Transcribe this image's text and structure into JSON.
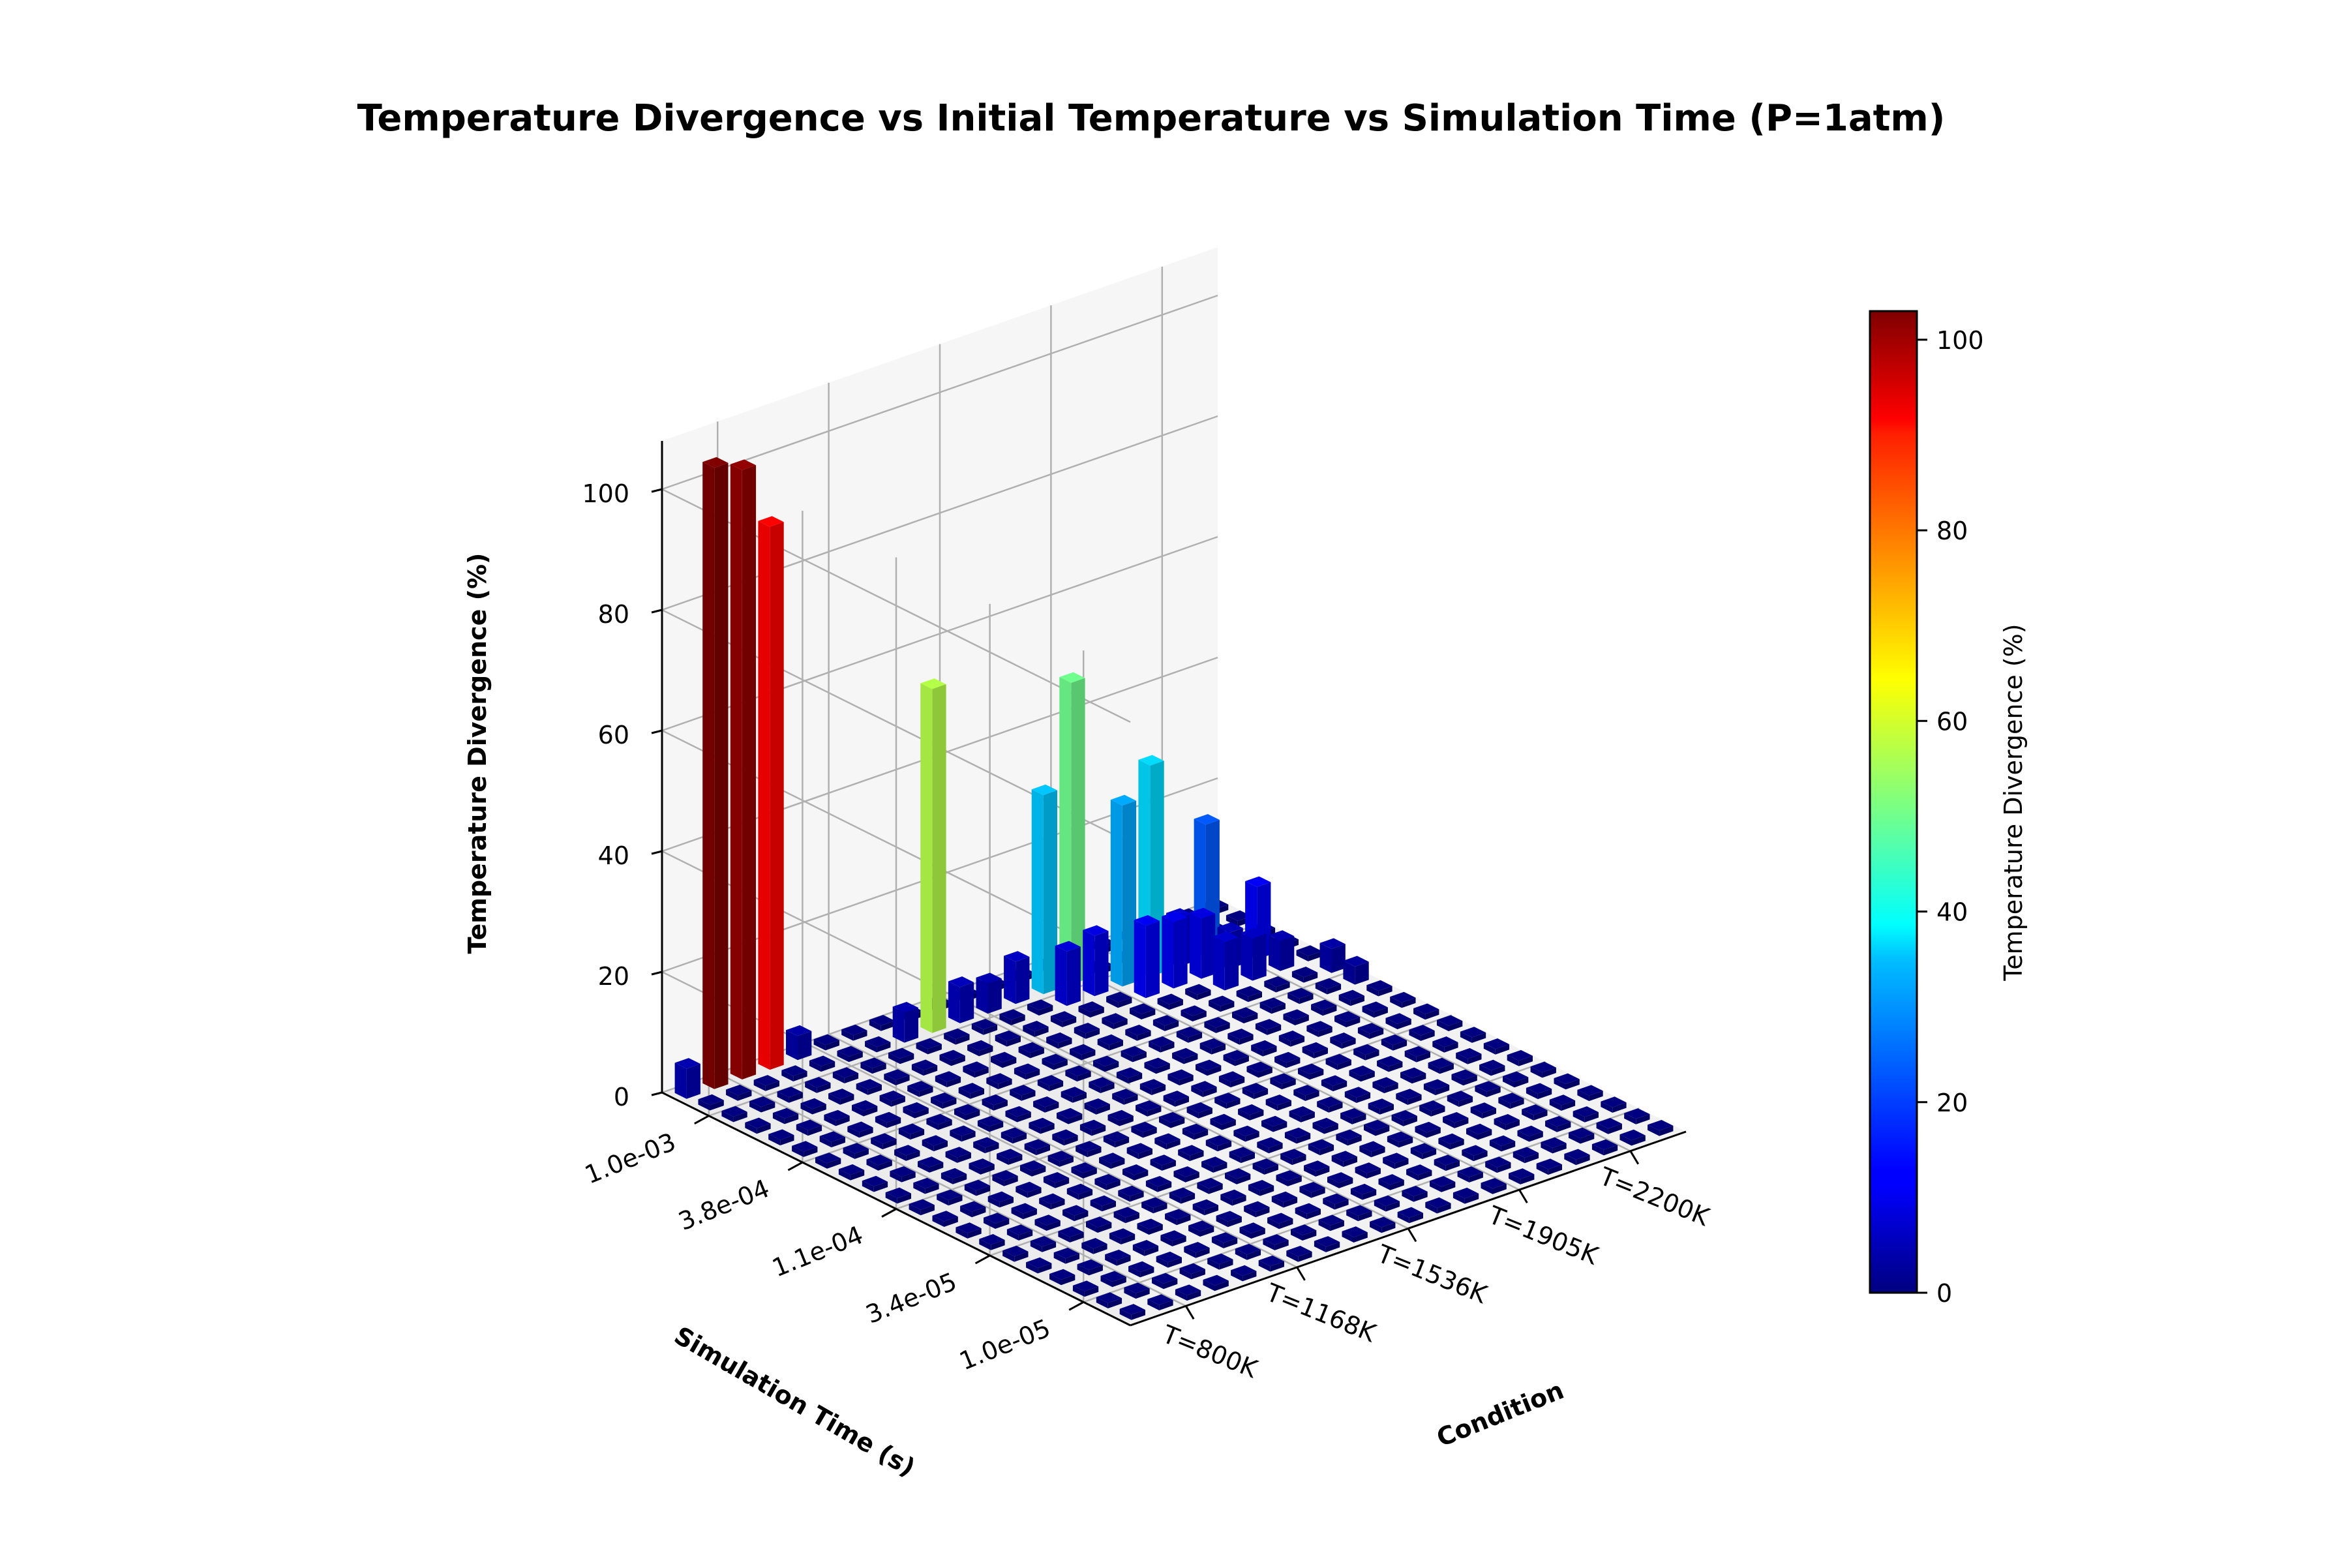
{
  "chart_data": {
    "type": "bar3d",
    "title": "Temperature Divergence vs Initial Temperature vs Simulation Time (P=1atm)",
    "xlabel": "Condition",
    "ylabel": "Simulation Time (s)",
    "zlabel": "Temperature Divergence (%)",
    "x_tick_labels": [
      "T=800K",
      "T=1168K",
      "T=1536K",
      "T=1905K",
      "T=2200K"
    ],
    "y_tick_labels": [
      "1.0e-05",
      "3.4e-05",
      "1.1e-04",
      "3.8e-04",
      "1.0e-03"
    ],
    "z_ticks": [
      0,
      20,
      40,
      60,
      80,
      100
    ],
    "zlim": [
      0,
      108
    ],
    "grid": true,
    "colormap": "jet",
    "colorbar": {
      "label": "Temperature Divergence (%)",
      "ticks": [
        0,
        20,
        40,
        60,
        80,
        100
      ],
      "range": [
        0,
        103
      ]
    },
    "grid_rows": 20,
    "grid_cols": 20,
    "baseline_value": 0,
    "bars": [
      {
        "row": 19,
        "col": 0,
        "value": 5
      },
      {
        "row": 19,
        "col": 1,
        "value": 103
      },
      {
        "row": 19,
        "col": 2,
        "value": 101
      },
      {
        "row": 19,
        "col": 3,
        "value": 90
      },
      {
        "row": 19,
        "col": 4,
        "value": 4
      },
      {
        "row": 18,
        "col": 7,
        "value": 5
      },
      {
        "row": 18,
        "col": 8,
        "value": 57
      },
      {
        "row": 18,
        "col": 9,
        "value": 6
      },
      {
        "row": 18,
        "col": 10,
        "value": 5
      },
      {
        "row": 18,
        "col": 11,
        "value": 7
      },
      {
        "row": 18,
        "col": 12,
        "value": 33
      },
      {
        "row": 18,
        "col": 13,
        "value": 50
      },
      {
        "row": 17,
        "col": 12,
        "value": 9
      },
      {
        "row": 17,
        "col": 13,
        "value": 10
      },
      {
        "row": 17,
        "col": 14,
        "value": 30
      },
      {
        "row": 17,
        "col": 15,
        "value": 35
      },
      {
        "row": 17,
        "col": 16,
        "value": 8
      },
      {
        "row": 17,
        "col": 17,
        "value": 22
      },
      {
        "row": 16,
        "col": 14,
        "value": 12
      },
      {
        "row": 16,
        "col": 15,
        "value": 11
      },
      {
        "row": 16,
        "col": 16,
        "value": 10
      },
      {
        "row": 16,
        "col": 17,
        "value": 6
      },
      {
        "row": 16,
        "col": 18,
        "value": 12
      },
      {
        "row": 15,
        "col": 16,
        "value": 8
      },
      {
        "row": 15,
        "col": 17,
        "value": 7
      },
      {
        "row": 15,
        "col": 18,
        "value": 5
      },
      {
        "row": 14,
        "col": 19,
        "value": 4
      },
      {
        "row": 13,
        "col": 19,
        "value": 3
      }
    ]
  }
}
